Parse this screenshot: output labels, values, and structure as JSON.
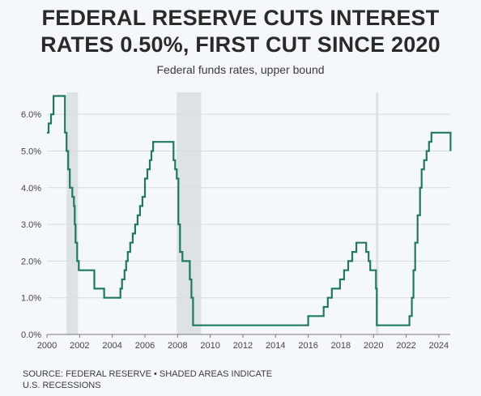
{
  "title_lines": [
    "FEDERAL RESERVE CUTS INTEREST",
    "RATES 0.50%, FIRST CUT SINCE 2020"
  ],
  "subtitle": "Federal funds rates, upper bound",
  "source_lines": [
    "SOURCE: FEDERAL RESERVE • SHADED AREAS INDICATE",
    "U.S. RECESSIONS"
  ],
  "colors": {
    "line": "#1f7a5c",
    "recession": "#dde2e7",
    "grid": "#d6dbe0",
    "axis": "#777777"
  },
  "chart_data": {
    "type": "line",
    "title": "FEDERAL RESERVE CUTS INTEREST RATES 0.50%, FIRST CUT SINCE 2020",
    "subtitle": "Federal funds rates, upper bound",
    "xlabel": "",
    "ylabel": "",
    "xlim": [
      2000,
      2024.7
    ],
    "ylim": [
      0,
      6.6
    ],
    "x_ticks": [
      2000,
      2002,
      2004,
      2006,
      2008,
      2010,
      2012,
      2014,
      2016,
      2018,
      2020,
      2022,
      2024
    ],
    "y_ticks": [
      0,
      1,
      2,
      3,
      4,
      5,
      6
    ],
    "y_tick_labels": [
      "0.0%",
      "1.0%",
      "2.0%",
      "3.0%",
      "4.0%",
      "5.0%",
      "6.0%"
    ],
    "grid": "horizontal",
    "recessions": [
      [
        2001.2,
        2001.9
      ],
      [
        2007.95,
        2009.45
      ],
      [
        2020.15,
        2020.3
      ]
    ],
    "series": [
      {
        "values": [
          [
            2000.0,
            5.5
          ],
          [
            2000.1,
            5.75
          ],
          [
            2000.25,
            6.0
          ],
          [
            2000.4,
            6.5
          ],
          [
            2001.0,
            6.5
          ],
          [
            2001.1,
            5.5
          ],
          [
            2001.2,
            5.0
          ],
          [
            2001.3,
            4.5
          ],
          [
            2001.4,
            4.0
          ],
          [
            2001.55,
            3.75
          ],
          [
            2001.65,
            3.5
          ],
          [
            2001.7,
            3.0
          ],
          [
            2001.75,
            2.5
          ],
          [
            2001.85,
            2.0
          ],
          [
            2001.95,
            1.75
          ],
          [
            2002.9,
            1.25
          ],
          [
            2003.5,
            1.0
          ],
          [
            2004.5,
            1.25
          ],
          [
            2004.6,
            1.5
          ],
          [
            2004.75,
            1.75
          ],
          [
            2004.85,
            2.0
          ],
          [
            2004.95,
            2.25
          ],
          [
            2005.1,
            2.5
          ],
          [
            2005.25,
            2.75
          ],
          [
            2005.4,
            3.0
          ],
          [
            2005.55,
            3.25
          ],
          [
            2005.7,
            3.5
          ],
          [
            2005.85,
            3.75
          ],
          [
            2006.0,
            4.25
          ],
          [
            2006.15,
            4.5
          ],
          [
            2006.3,
            4.75
          ],
          [
            2006.4,
            5.0
          ],
          [
            2006.5,
            5.25
          ],
          [
            2007.7,
            5.25
          ],
          [
            2007.75,
            4.75
          ],
          [
            2007.85,
            4.5
          ],
          [
            2007.95,
            4.25
          ],
          [
            2008.05,
            3.0
          ],
          [
            2008.15,
            2.25
          ],
          [
            2008.3,
            2.0
          ],
          [
            2008.75,
            1.5
          ],
          [
            2008.85,
            1.0
          ],
          [
            2008.95,
            0.25
          ],
          [
            2015.95,
            0.25
          ],
          [
            2016.0,
            0.5
          ],
          [
            2016.95,
            0.75
          ],
          [
            2017.2,
            1.0
          ],
          [
            2017.45,
            1.25
          ],
          [
            2017.95,
            1.5
          ],
          [
            2018.2,
            1.75
          ],
          [
            2018.45,
            2.0
          ],
          [
            2018.7,
            2.25
          ],
          [
            2018.95,
            2.5
          ],
          [
            2019.55,
            2.25
          ],
          [
            2019.7,
            2.0
          ],
          [
            2019.8,
            1.75
          ],
          [
            2020.15,
            1.25
          ],
          [
            2020.2,
            0.25
          ],
          [
            2022.2,
            0.5
          ],
          [
            2022.35,
            1.0
          ],
          [
            2022.45,
            1.75
          ],
          [
            2022.55,
            2.5
          ],
          [
            2022.7,
            3.25
          ],
          [
            2022.85,
            4.0
          ],
          [
            2022.95,
            4.5
          ],
          [
            2023.1,
            4.75
          ],
          [
            2023.25,
            5.0
          ],
          [
            2023.4,
            5.25
          ],
          [
            2023.55,
            5.5
          ],
          [
            2024.7,
            5.5
          ],
          [
            2024.72,
            5.0
          ]
        ]
      }
    ]
  }
}
